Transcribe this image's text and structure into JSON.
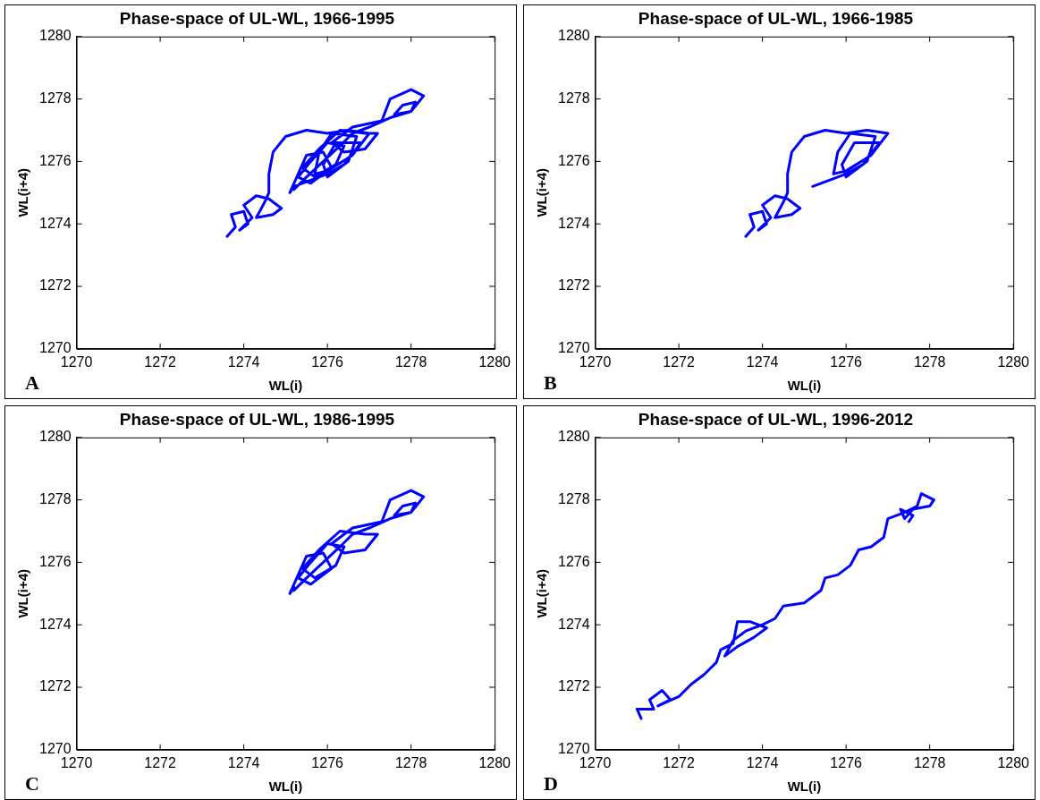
{
  "chart_data": [
    {
      "type": "line",
      "title": "Phase-space of UL-WL, 1966-1995",
      "xlabel": "WL(i)",
      "ylabel": "WL(i+4)",
      "xlim": [
        1270,
        1280
      ],
      "ylim": [
        1270,
        1280
      ],
      "xticks": [
        1270,
        1272,
        1274,
        1276,
        1278,
        1280
      ],
      "yticks": [
        1270,
        1272,
        1274,
        1276,
        1278,
        1280
      ],
      "grid": false,
      "legend": false,
      "marker": "none",
      "line_style": "solid",
      "annotations": [
        "A"
      ],
      "series": [
        {
          "color": "#0000ff",
          "x": [
            1273.6,
            1273.8,
            1273.7,
            1274.0,
            1274.1,
            1273.9,
            1274.2,
            1274.0,
            1274.3,
            1274.6,
            1274.9,
            1274.7,
            1274.3,
            1274.5,
            1274.6,
            1274.6,
            1274.7,
            1275.0,
            1275.5,
            1276.0,
            1276.5,
            1277.0,
            1276.6,
            1276.0,
            1275.7,
            1275.8,
            1276.1,
            1276.7,
            1276.5,
            1276.0,
            1275.9,
            1276.2,
            1276.8,
            1276.4,
            1276.0,
            1275.6,
            1275.2,
            1275.1,
            1275.3,
            1275.5,
            1275.9,
            1276.1,
            1275.6,
            1275.3,
            1275.6,
            1276.0,
            1276.4,
            1276.2,
            1275.7,
            1275.4,
            1275.8,
            1276.3,
            1276.9,
            1277.2,
            1276.9,
            1276.4,
            1276.1,
            1276.6,
            1277.3,
            1277.5,
            1278.0,
            1278.3,
            1278.0,
            1277.6,
            1277.8,
            1278.1,
            1278.0,
            1277.5,
            1277.0,
            1276.6,
            1276.3,
            1275.9,
            1275.5,
            1275.2
          ],
          "values": [
            1273.6,
            1273.9,
            1274.3,
            1274.4,
            1274.0,
            1273.8,
            1274.2,
            1274.6,
            1274.9,
            1274.8,
            1274.5,
            1274.3,
            1274.2,
            1274.7,
            1275.0,
            1275.6,
            1276.3,
            1276.8,
            1277.0,
            1276.9,
            1277.0,
            1276.9,
            1276.2,
            1275.7,
            1275.6,
            1276.3,
            1276.9,
            1276.8,
            1276.0,
            1275.5,
            1275.9,
            1276.6,
            1276.6,
            1275.9,
            1275.6,
            1275.4,
            1275.2,
            1275.0,
            1275.6,
            1276.2,
            1276.3,
            1275.8,
            1275.3,
            1275.5,
            1276.0,
            1276.6,
            1276.5,
            1275.9,
            1275.5,
            1275.8,
            1276.4,
            1277.0,
            1276.9,
            1276.9,
            1276.4,
            1276.3,
            1276.6,
            1277.1,
            1277.3,
            1278.0,
            1278.3,
            1278.1,
            1277.6,
            1277.5,
            1277.8,
            1277.9,
            1277.6,
            1277.4,
            1277.1,
            1276.9,
            1276.5,
            1276.0,
            1275.5,
            1275.1
          ]
        }
      ]
    },
    {
      "type": "line",
      "title": "Phase-space of UL-WL, 1966-1985",
      "xlabel": "WL(i)",
      "ylabel": "WL(i+4)",
      "xlim": [
        1270,
        1280
      ],
      "ylim": [
        1270,
        1280
      ],
      "xticks": [
        1270,
        1272,
        1274,
        1276,
        1278,
        1280
      ],
      "yticks": [
        1270,
        1272,
        1274,
        1276,
        1278,
        1280
      ],
      "grid": false,
      "legend": false,
      "marker": "none",
      "line_style": "solid",
      "annotations": [
        "B"
      ],
      "series": [
        {
          "color": "#0000ff",
          "x": [
            1273.6,
            1273.8,
            1273.7,
            1274.0,
            1274.1,
            1273.9,
            1274.2,
            1274.0,
            1274.3,
            1274.6,
            1274.9,
            1274.7,
            1274.3,
            1274.5,
            1274.6,
            1274.6,
            1274.7,
            1275.0,
            1275.5,
            1276.0,
            1276.5,
            1277.0,
            1276.6,
            1276.0,
            1275.7,
            1275.8,
            1276.1,
            1276.7,
            1276.5,
            1276.0,
            1275.9,
            1276.2,
            1276.8,
            1276.4,
            1276.0,
            1275.6,
            1275.2
          ],
          "values": [
            1273.6,
            1273.9,
            1274.3,
            1274.4,
            1274.0,
            1273.8,
            1274.2,
            1274.6,
            1274.9,
            1274.8,
            1274.5,
            1274.3,
            1274.2,
            1274.7,
            1275.0,
            1275.6,
            1276.3,
            1276.8,
            1277.0,
            1276.9,
            1277.0,
            1276.9,
            1276.2,
            1275.7,
            1275.6,
            1276.3,
            1276.9,
            1276.8,
            1276.0,
            1275.5,
            1275.9,
            1276.6,
            1276.6,
            1275.9,
            1275.6,
            1275.4,
            1275.2
          ]
        }
      ]
    },
    {
      "type": "line",
      "title": "Phase-space of UL-WL, 1986-1995",
      "xlabel": "WL(i)",
      "ylabel": "WL(i+4)",
      "xlim": [
        1270,
        1280
      ],
      "ylim": [
        1270,
        1280
      ],
      "xticks": [
        1270,
        1272,
        1274,
        1276,
        1278,
        1280
      ],
      "yticks": [
        1270,
        1272,
        1274,
        1276,
        1278,
        1280
      ],
      "grid": false,
      "legend": false,
      "marker": "none",
      "line_style": "solid",
      "annotations": [
        "C"
      ],
      "series": [
        {
          "color": "#0000ff",
          "x": [
            1275.2,
            1275.1,
            1275.3,
            1275.5,
            1275.9,
            1276.1,
            1275.6,
            1275.3,
            1275.6,
            1276.0,
            1276.4,
            1276.2,
            1275.7,
            1275.4,
            1275.8,
            1276.3,
            1276.9,
            1277.2,
            1276.9,
            1276.4,
            1276.1,
            1276.6,
            1277.3,
            1277.5,
            1278.0,
            1278.3,
            1278.0,
            1277.6,
            1277.8,
            1278.1,
            1278.0,
            1277.5,
            1277.0,
            1276.6,
            1276.3,
            1275.9,
            1275.5,
            1275.2
          ],
          "values": [
            1275.2,
            1275.0,
            1275.6,
            1276.2,
            1276.3,
            1275.8,
            1275.3,
            1275.5,
            1276.0,
            1276.6,
            1276.5,
            1275.9,
            1275.5,
            1275.8,
            1276.4,
            1277.0,
            1276.9,
            1276.9,
            1276.4,
            1276.3,
            1276.6,
            1277.1,
            1277.3,
            1278.0,
            1278.3,
            1278.1,
            1277.6,
            1277.5,
            1277.8,
            1277.9,
            1277.6,
            1277.4,
            1277.1,
            1276.9,
            1276.5,
            1276.0,
            1275.5,
            1275.1
          ]
        }
      ]
    },
    {
      "type": "line",
      "title": "Phase-space of UL-WL, 1996-2012",
      "xlabel": "WL(i)",
      "ylabel": "WL(i+4)",
      "xlim": [
        1270,
        1280
      ],
      "ylim": [
        1270,
        1280
      ],
      "xticks": [
        1270,
        1272,
        1274,
        1276,
        1278,
        1280
      ],
      "yticks": [
        1270,
        1272,
        1274,
        1276,
        1278,
        1280
      ],
      "grid": false,
      "legend": false,
      "marker": "none",
      "line_style": "solid",
      "annotations": [
        "D"
      ],
      "series": [
        {
          "color": "#0000ff",
          "x": [
            1271.1,
            1271.0,
            1271.4,
            1271.3,
            1271.6,
            1271.8,
            1271.5,
            1272.0,
            1272.3,
            1272.6,
            1272.9,
            1273.0,
            1273.3,
            1273.4,
            1273.7,
            1274.1,
            1273.8,
            1273.4,
            1273.1,
            1273.3,
            1273.6,
            1274.0,
            1274.3,
            1274.5,
            1275.0,
            1275.4,
            1275.5,
            1275.8,
            1276.1,
            1276.3,
            1276.6,
            1276.9,
            1277.0,
            1277.4,
            1277.7,
            1277.8,
            1278.1,
            1278.0,
            1277.6,
            1277.4,
            1277.3,
            1277.6,
            1277.5
          ],
          "values": [
            1271.0,
            1271.3,
            1271.3,
            1271.6,
            1271.9,
            1271.6,
            1271.4,
            1271.7,
            1272.1,
            1272.4,
            1272.8,
            1273.2,
            1273.4,
            1274.1,
            1274.1,
            1273.9,
            1273.6,
            1273.3,
            1273.0,
            1273.5,
            1273.8,
            1274.0,
            1274.2,
            1274.6,
            1274.7,
            1275.1,
            1275.5,
            1275.6,
            1275.9,
            1276.4,
            1276.5,
            1276.8,
            1277.4,
            1277.6,
            1277.8,
            1278.2,
            1278.0,
            1277.8,
            1277.7,
            1277.4,
            1277.7,
            1277.5,
            1277.3
          ]
        }
      ]
    }
  ]
}
